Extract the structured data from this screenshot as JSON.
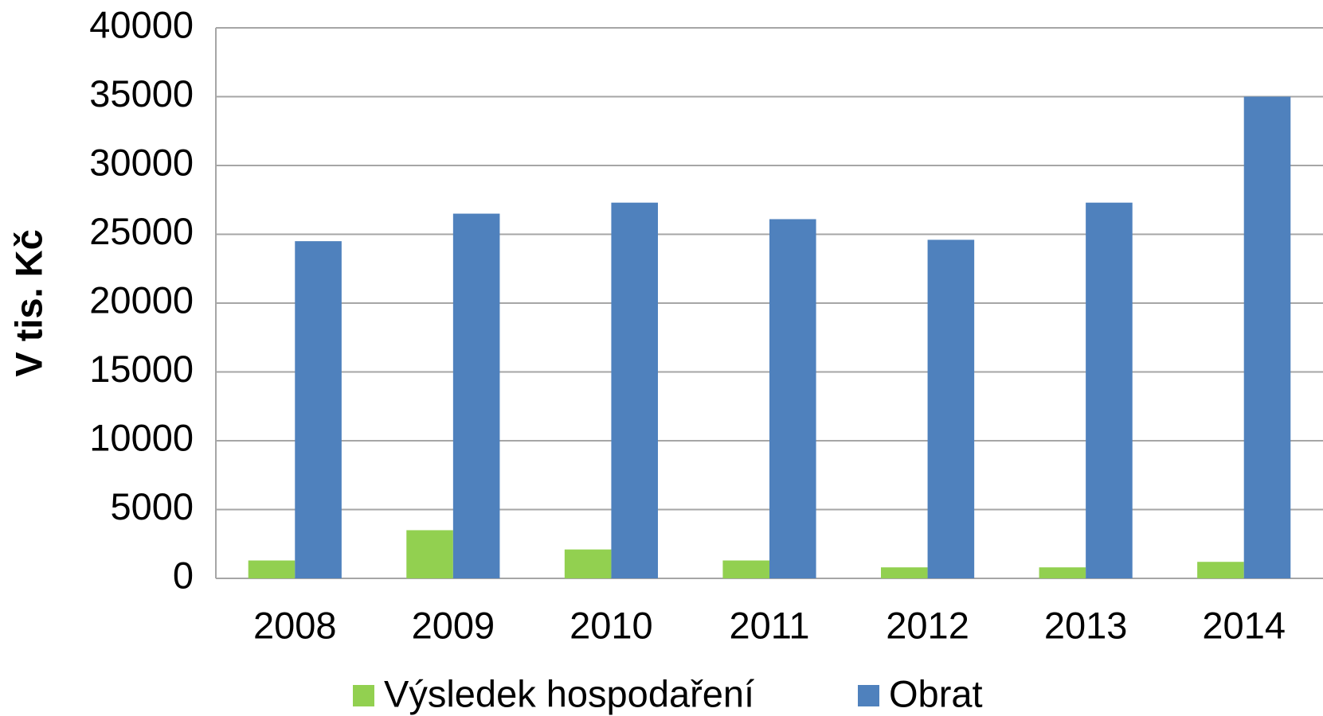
{
  "chart_data": {
    "type": "bar",
    "y_label": "V tis. Kč",
    "categories": [
      "2008",
      "2009",
      "2010",
      "2011",
      "2012",
      "2013",
      "2014"
    ],
    "series": [
      {
        "name": "Výsledek hospodaření",
        "color": "#92d050",
        "values": [
          1300,
          3500,
          2100,
          1300,
          800,
          800,
          1200
        ]
      },
      {
        "name": "Obrat",
        "color": "#4f81bd",
        "values": [
          24500,
          26500,
          27300,
          26100,
          24600,
          27300,
          35000
        ]
      }
    ],
    "ylim": [
      0,
      40000
    ],
    "yticks": [
      0,
      5000,
      10000,
      15000,
      20000,
      25000,
      30000,
      35000,
      40000
    ],
    "grid": true,
    "legend": "bottom"
  }
}
